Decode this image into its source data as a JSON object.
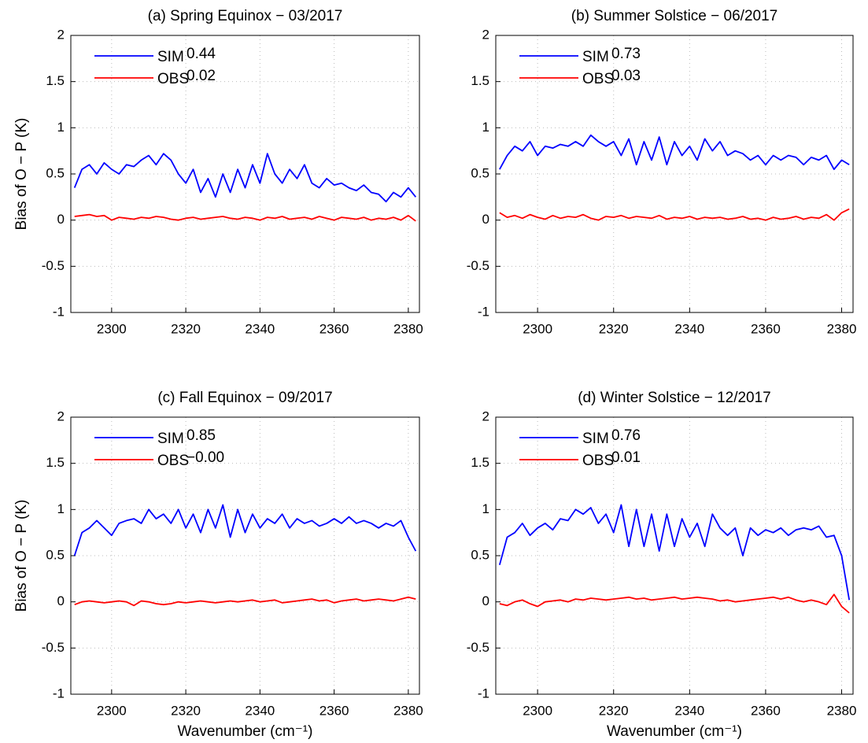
{
  "chart_data": [
    {
      "type": "line",
      "title": "(a) Spring Equinox − 03/2017",
      "ylabel": "Bias of O − P (K)",
      "x": [
        2290,
        2292,
        2294,
        2296,
        2298,
        2300,
        2302,
        2304,
        2306,
        2308,
        2310,
        2312,
        2314,
        2316,
        2318,
        2320,
        2322,
        2324,
        2326,
        2328,
        2330,
        2332,
        2334,
        2336,
        2338,
        2340,
        2342,
        2344,
        2346,
        2348,
        2350,
        2352,
        2354,
        2356,
        2358,
        2360,
        2362,
        2364,
        2366,
        2368,
        2370,
        2372,
        2374,
        2376,
        2378,
        2380,
        2382
      ],
      "series": [
        {
          "name": "SIM",
          "color": "#0000ff",
          "mean": 0.44,
          "values": [
            0.35,
            0.55,
            0.6,
            0.5,
            0.62,
            0.55,
            0.5,
            0.6,
            0.58,
            0.65,
            0.7,
            0.6,
            0.72,
            0.65,
            0.5,
            0.4,
            0.55,
            0.3,
            0.45,
            0.25,
            0.5,
            0.3,
            0.55,
            0.35,
            0.6,
            0.4,
            0.72,
            0.5,
            0.4,
            0.55,
            0.45,
            0.6,
            0.4,
            0.35,
            0.45,
            0.38,
            0.4,
            0.35,
            0.32,
            0.38,
            0.3,
            0.28,
            0.2,
            0.3,
            0.25,
            0.35,
            0.25
          ]
        },
        {
          "name": "OBS",
          "color": "#ff0000",
          "mean": 0.02,
          "values": [
            0.04,
            0.05,
            0.06,
            0.04,
            0.05,
            0.0,
            0.03,
            0.02,
            0.01,
            0.03,
            0.02,
            0.04,
            0.03,
            0.01,
            0.0,
            0.02,
            0.03,
            0.01,
            0.02,
            0.03,
            0.04,
            0.02,
            0.01,
            0.03,
            0.02,
            0.0,
            0.03,
            0.02,
            0.04,
            0.01,
            0.02,
            0.03,
            0.01,
            0.04,
            0.02,
            0.0,
            0.03,
            0.02,
            0.01,
            0.03,
            0.0,
            0.02,
            0.01,
            0.03,
            0.0,
            0.05,
            -0.01
          ]
        }
      ],
      "xlim": [
        2289,
        2383
      ],
      "xticks": [
        2300,
        2320,
        2340,
        2360,
        2380
      ],
      "ylim": [
        -1,
        2
      ],
      "yticks": [
        -1,
        -0.5,
        0,
        0.5,
        1,
        1.5,
        2
      ],
      "grid": true
    },
    {
      "type": "line",
      "title": "(b) Summer Solstice − 06/2017",
      "x": [
        2290,
        2292,
        2294,
        2296,
        2298,
        2300,
        2302,
        2304,
        2306,
        2308,
        2310,
        2312,
        2314,
        2316,
        2318,
        2320,
        2322,
        2324,
        2326,
        2328,
        2330,
        2332,
        2334,
        2336,
        2338,
        2340,
        2342,
        2344,
        2346,
        2348,
        2350,
        2352,
        2354,
        2356,
        2358,
        2360,
        2362,
        2364,
        2366,
        2368,
        2370,
        2372,
        2374,
        2376,
        2378,
        2380,
        2382
      ],
      "series": [
        {
          "name": "SIM",
          "color": "#0000ff",
          "mean": 0.73,
          "values": [
            0.55,
            0.7,
            0.8,
            0.75,
            0.85,
            0.7,
            0.8,
            0.78,
            0.82,
            0.8,
            0.85,
            0.8,
            0.92,
            0.85,
            0.8,
            0.85,
            0.7,
            0.88,
            0.6,
            0.85,
            0.65,
            0.9,
            0.6,
            0.85,
            0.7,
            0.8,
            0.65,
            0.88,
            0.75,
            0.85,
            0.7,
            0.75,
            0.72,
            0.65,
            0.7,
            0.6,
            0.7,
            0.65,
            0.7,
            0.68,
            0.6,
            0.68,
            0.65,
            0.7,
            0.55,
            0.65,
            0.6
          ]
        },
        {
          "name": "OBS",
          "color": "#ff0000",
          "mean": 0.03,
          "values": [
            0.08,
            0.03,
            0.05,
            0.02,
            0.06,
            0.03,
            0.01,
            0.05,
            0.02,
            0.04,
            0.03,
            0.06,
            0.02,
            0.0,
            0.04,
            0.03,
            0.05,
            0.02,
            0.04,
            0.03,
            0.02,
            0.05,
            0.01,
            0.03,
            0.02,
            0.04,
            0.01,
            0.03,
            0.02,
            0.03,
            0.01,
            0.02,
            0.04,
            0.01,
            0.02,
            0.0,
            0.03,
            0.01,
            0.02,
            0.04,
            0.01,
            0.03,
            0.02,
            0.06,
            0.0,
            0.08,
            0.12
          ]
        }
      ],
      "xlim": [
        2289,
        2383
      ],
      "xticks": [
        2300,
        2320,
        2340,
        2360,
        2380
      ],
      "ylim": [
        -1,
        2
      ],
      "yticks": [
        -1,
        -0.5,
        0,
        0.5,
        1,
        1.5,
        2
      ],
      "grid": true
    },
    {
      "type": "line",
      "title": "(c) Fall Equinox − 09/2017",
      "ylabel": "Bias of O − P (K)",
      "xlabel": "Wavenumber (cm⁻¹)",
      "x": [
        2290,
        2292,
        2294,
        2296,
        2298,
        2300,
        2302,
        2304,
        2306,
        2308,
        2310,
        2312,
        2314,
        2316,
        2318,
        2320,
        2322,
        2324,
        2326,
        2328,
        2330,
        2332,
        2334,
        2336,
        2338,
        2340,
        2342,
        2344,
        2346,
        2348,
        2350,
        2352,
        2354,
        2356,
        2358,
        2360,
        2362,
        2364,
        2366,
        2368,
        2370,
        2372,
        2374,
        2376,
        2378,
        2380,
        2382
      ],
      "series": [
        {
          "name": "SIM",
          "color": "#0000ff",
          "mean": 0.85,
          "values": [
            0.5,
            0.75,
            0.8,
            0.88,
            0.8,
            0.72,
            0.85,
            0.88,
            0.9,
            0.85,
            1.0,
            0.9,
            0.95,
            0.85,
            1.0,
            0.8,
            0.95,
            0.75,
            1.0,
            0.8,
            1.05,
            0.7,
            1.0,
            0.75,
            0.95,
            0.8,
            0.9,
            0.85,
            0.95,
            0.8,
            0.9,
            0.85,
            0.88,
            0.82,
            0.85,
            0.9,
            0.85,
            0.92,
            0.85,
            0.88,
            0.85,
            0.8,
            0.85,
            0.82,
            0.88,
            0.7,
            0.55
          ]
        },
        {
          "name": "OBS",
          "color": "#ff0000",
          "mean": 0,
          "mean_label": "−0.00",
          "values": [
            -0.03,
            0.0,
            0.01,
            0.0,
            -0.01,
            0.0,
            0.01,
            0.0,
            -0.04,
            0.01,
            0.0,
            -0.02,
            -0.03,
            -0.02,
            0.0,
            -0.01,
            0.0,
            0.01,
            0.0,
            -0.01,
            0.0,
            0.01,
            0.0,
            0.01,
            0.02,
            0.0,
            0.01,
            0.02,
            -0.01,
            0.0,
            0.01,
            0.02,
            0.03,
            0.01,
            0.02,
            -0.01,
            0.01,
            0.02,
            0.03,
            0.01,
            0.02,
            0.03,
            0.02,
            0.01,
            0.03,
            0.05,
            0.03
          ]
        }
      ],
      "xlim": [
        2289,
        2383
      ],
      "xticks": [
        2300,
        2320,
        2340,
        2360,
        2380
      ],
      "ylim": [
        -1,
        2
      ],
      "yticks": [
        -1,
        -0.5,
        0,
        0.5,
        1,
        1.5,
        2
      ],
      "grid": true
    },
    {
      "type": "line",
      "title": "(d) Winter Solstice − 12/2017",
      "xlabel": "Wavenumber (cm⁻¹)",
      "x": [
        2290,
        2292,
        2294,
        2296,
        2298,
        2300,
        2302,
        2304,
        2306,
        2308,
        2310,
        2312,
        2314,
        2316,
        2318,
        2320,
        2322,
        2324,
        2326,
        2328,
        2330,
        2332,
        2334,
        2336,
        2338,
        2340,
        2342,
        2344,
        2346,
        2348,
        2350,
        2352,
        2354,
        2356,
        2358,
        2360,
        2362,
        2364,
        2366,
        2368,
        2370,
        2372,
        2374,
        2376,
        2378,
        2380,
        2382
      ],
      "series": [
        {
          "name": "SIM",
          "color": "#0000ff",
          "mean": 0.76,
          "values": [
            0.4,
            0.7,
            0.75,
            0.85,
            0.72,
            0.8,
            0.85,
            0.78,
            0.9,
            0.88,
            1.0,
            0.95,
            1.02,
            0.85,
            0.95,
            0.75,
            1.05,
            0.6,
            1.0,
            0.6,
            0.95,
            0.55,
            0.95,
            0.6,
            0.9,
            0.7,
            0.85,
            0.6,
            0.95,
            0.8,
            0.72,
            0.8,
            0.5,
            0.8,
            0.72,
            0.78,
            0.75,
            0.8,
            0.72,
            0.78,
            0.8,
            0.78,
            0.82,
            0.7,
            0.72,
            0.5,
            0.02
          ]
        },
        {
          "name": "OBS",
          "color": "#ff0000",
          "mean": 0.01,
          "values": [
            -0.02,
            -0.04,
            0.0,
            0.02,
            -0.02,
            -0.05,
            0.0,
            0.01,
            0.02,
            0.0,
            0.03,
            0.02,
            0.04,
            0.03,
            0.02,
            0.03,
            0.04,
            0.05,
            0.03,
            0.04,
            0.02,
            0.03,
            0.04,
            0.05,
            0.03,
            0.04,
            0.05,
            0.04,
            0.03,
            0.01,
            0.02,
            0.0,
            0.01,
            0.02,
            0.03,
            0.04,
            0.05,
            0.03,
            0.05,
            0.02,
            0.0,
            0.02,
            0.0,
            -0.03,
            0.08,
            -0.05,
            -0.12
          ]
        }
      ],
      "xlim": [
        2289,
        2383
      ],
      "xticks": [
        2300,
        2320,
        2340,
        2360,
        2380
      ],
      "ylim": [
        -1,
        2
      ],
      "yticks": [
        -1,
        -0.5,
        0,
        0.5,
        1,
        1.5,
        2
      ],
      "grid": true
    }
  ]
}
